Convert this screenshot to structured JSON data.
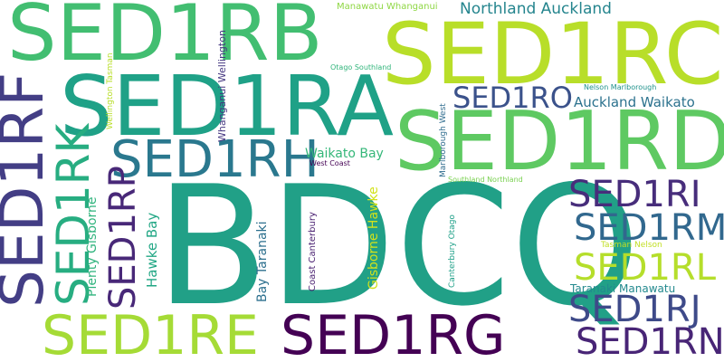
{
  "words": {
    "bdcq": {
      "text": "BDCQ",
      "color": "#21a087"
    },
    "sed1rb": {
      "text": "SED1RB",
      "color": "#42be71"
    },
    "sed1rc": {
      "text": "SED1RC",
      "color": "#b8de29"
    },
    "sed1ra": {
      "text": "SED1RA",
      "color": "#1fa187"
    },
    "sed1rd": {
      "text": "SED1RD",
      "color": "#5ec962"
    },
    "sed1rf": {
      "text": "SED1RF",
      "color": "#433e85"
    },
    "sed1rk": {
      "text": "SED1RK",
      "color": "#27ad81"
    },
    "sed1rh": {
      "text": "SED1RH",
      "color": "#2a788e"
    },
    "sed1rp": {
      "text": "SED1RP",
      "color": "#482878"
    },
    "sed1re": {
      "text": "SED1RE",
      "color": "#a5db36"
    },
    "sed1rg": {
      "text": "SED1RG",
      "color": "#440154"
    },
    "sed1ro": {
      "text": "SED1RO",
      "color": "#3b528b"
    },
    "sed1ri": {
      "text": "SED1RI",
      "color": "#472d7b"
    },
    "sed1rm": {
      "text": "SED1RM",
      "color": "#31688e"
    },
    "sed1rl": {
      "text": "SED1RL",
      "color": "#b5de2b"
    },
    "sed1rj": {
      "text": "SED1RJ",
      "color": "#3e4a89"
    },
    "sed1rn": {
      "text": "SED1RN",
      "color": "#482576"
    },
    "northland_auckland": {
      "text": "Northland Auckland",
      "color": "#25858e"
    },
    "auckland_waikato": {
      "text": "Auckland Waikato",
      "color": "#2c728e"
    },
    "waikato_bay": {
      "text": "Waikato Bay",
      "color": "#35b779"
    },
    "taranaki_manawatu": {
      "text": "Taranaki Manawatu",
      "color": "#23898e"
    },
    "manawatu_whanganui": {
      "text": "Manawatu Whanganui",
      "color": "#8fd744"
    },
    "otago_southland": {
      "text": "Otago Southland",
      "color": "#31b57b"
    },
    "nelson_marlborough": {
      "text": "Nelson Marlborough",
      "color": "#20928c"
    },
    "west_coast": {
      "text": "West Coast",
      "color": "#440154"
    },
    "southland_northland": {
      "text": "Southland Northland",
      "color": "#7ad151"
    },
    "tasman_nelson": {
      "text": "Tasman Nelson",
      "color": "#c2df23"
    },
    "wellington_tasman": {
      "text": "Wellington Tasman",
      "color": "#b8de29"
    },
    "whanganui_wellington": {
      "text": "Whanganui Wellington",
      "color": "#453781"
    },
    "plenty_gisborne": {
      "text": "Plenty Gisborne",
      "color": "#2eb37c"
    },
    "hawke_bay": {
      "text": "Hawke Bay",
      "color": "#22a785"
    },
    "bay_taranaki": {
      "text": "Bay Taranaki",
      "color": "#2d708e"
    },
    "coast_canterbury": {
      "text": "Coast Canterbury",
      "color": "#481f70"
    },
    "gisborne_hawke": {
      "text": "Gisborne Hawke",
      "color": "#d2e21b"
    },
    "marlborough_west": {
      "text": "Marlborough West",
      "color": "#2f6c8e"
    },
    "canterbury_otago": {
      "text": "Canterbury Otago",
      "color": "#1fa088"
    }
  }
}
